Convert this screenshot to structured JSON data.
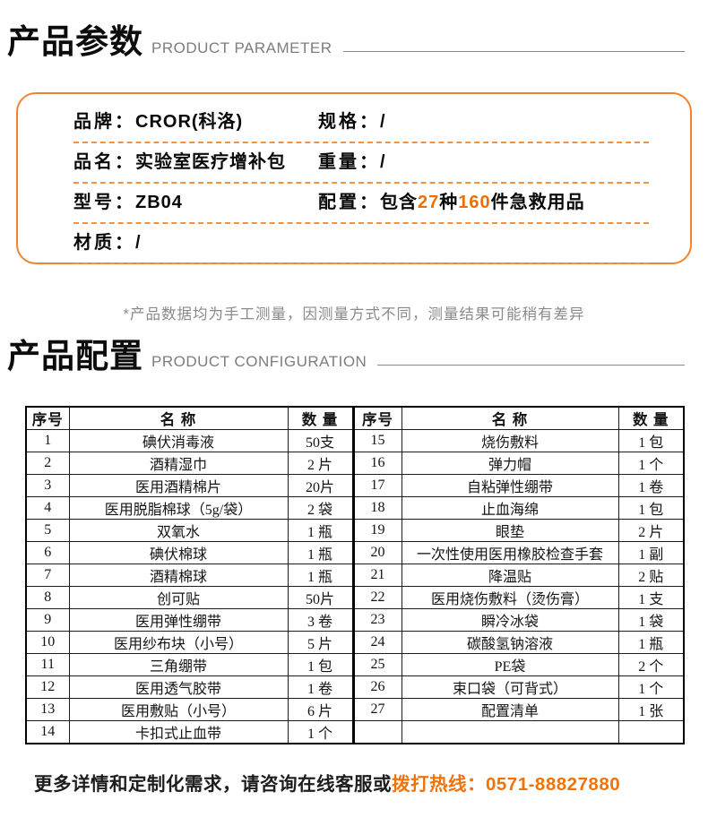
{
  "accent": {
    "box_border_orange": "#f08330",
    "highlight_orange": "#ee6f00",
    "hotline_orange": "#f0730a",
    "subtitle_gray": "#7d7d7d"
  },
  "param_section": {
    "title_cn": "产品参数",
    "title_en": "PRODUCT PARAMETER",
    "rows": {
      "brand_label": "品牌：",
      "brand_value": "CROR(科洛)",
      "spec_label": "规格：",
      "spec_value": "/",
      "name_label": "品名：",
      "name_value": "实验室医疗增补包",
      "weight_label": "重量：",
      "weight_value": "/",
      "model_label": "型号：",
      "model_value": "ZB04",
      "config_label": "配置：",
      "config_prefix": "包含",
      "config_num1": "27",
      "config_mid": "种",
      "config_num2": "160",
      "config_suffix": "件急救用品",
      "material_label": "材质：",
      "material_value": "/"
    },
    "note": "*产品数据均为手工测量，因测量方式不同，测量结果可能稍有差异"
  },
  "config_section": {
    "title_cn": "产品配置",
    "title_en": "PRODUCT CONFIGURATION",
    "table": {
      "headers": {
        "no": "序号",
        "name": "名 称",
        "qty": "数 量"
      },
      "left_rows": [
        {
          "no": "1",
          "name": "碘伏消毒液",
          "qty": "50支"
        },
        {
          "no": "2",
          "name": "酒精湿巾",
          "qty": "2 片"
        },
        {
          "no": "3",
          "name": "医用酒精棉片",
          "qty": "20片"
        },
        {
          "no": "4",
          "name": "医用脱脂棉球（5g/袋）",
          "qty": "2 袋"
        },
        {
          "no": "5",
          "name": "双氧水",
          "qty": "1 瓶"
        },
        {
          "no": "6",
          "name": "碘伏棉球",
          "qty": "1 瓶"
        },
        {
          "no": "7",
          "name": "酒精棉球",
          "qty": "1 瓶"
        },
        {
          "no": "8",
          "name": "创可贴",
          "qty": "50片"
        },
        {
          "no": "9",
          "name": "医用弹性绷带",
          "qty": "3 卷"
        },
        {
          "no": "10",
          "name": "医用纱布块（小号）",
          "qty": "5 片"
        },
        {
          "no": "11",
          "name": "三角绷带",
          "qty": "1 包"
        },
        {
          "no": "12",
          "name": "医用透气胶带",
          "qty": "1 卷"
        },
        {
          "no": "13",
          "name": "医用敷贴（小号）",
          "qty": "6 片"
        },
        {
          "no": "14",
          "name": "卡扣式止血带",
          "qty": "1 个"
        }
      ],
      "right_rows": [
        {
          "no": "15",
          "name": "烧伤敷料",
          "qty": "1 包"
        },
        {
          "no": "16",
          "name": "弹力帽",
          "qty": "1 个"
        },
        {
          "no": "17",
          "name": "自粘弹性绷带",
          "qty": "1 卷"
        },
        {
          "no": "18",
          "name": "止血海绵",
          "qty": "1 包"
        },
        {
          "no": "19",
          "name": "眼垫",
          "qty": "2 片"
        },
        {
          "no": "20",
          "name": "一次性使用医用橡胶检查手套",
          "qty": "1 副"
        },
        {
          "no": "21",
          "name": "降温贴",
          "qty": "2 贴"
        },
        {
          "no": "22",
          "name": "医用烧伤敷料（烫伤膏）",
          "qty": "1 支"
        },
        {
          "no": "23",
          "name": "瞬冷冰袋",
          "qty": "1 袋"
        },
        {
          "no": "24",
          "name": "碳酸氢钠溶液",
          "qty": "1 瓶"
        },
        {
          "no": "25",
          "name": "PE袋",
          "qty": "2 个"
        },
        {
          "no": "26",
          "name": "束口袋（可背式）",
          "qty": "1 个"
        },
        {
          "no": "27",
          "name": "配置清单",
          "qty": "1 张"
        },
        {
          "no": "",
          "name": "",
          "qty": ""
        }
      ]
    }
  },
  "footer": {
    "text_black": "更多详情和定制化需求，请咨询在线客服或",
    "text_orange": "拨打热线：0571-88827880"
  }
}
